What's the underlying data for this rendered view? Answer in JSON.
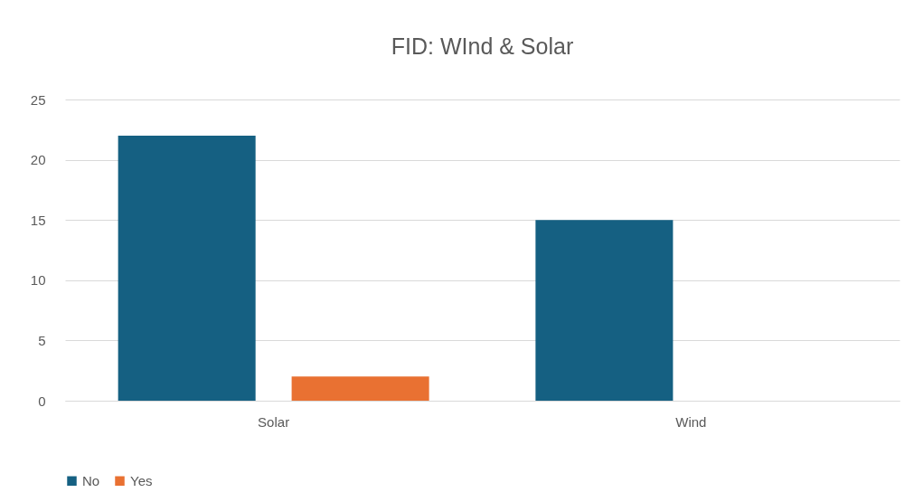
{
  "chart_data": {
    "type": "bar",
    "title": "FID: WInd & Solar",
    "categories": [
      "Solar",
      "Wind"
    ],
    "series": [
      {
        "name": "No",
        "color": "#156082",
        "values": [
          22,
          15
        ]
      },
      {
        "name": "Yes",
        "color": "#e97132",
        "values": [
          2,
          0
        ]
      }
    ],
    "ylim": [
      0,
      25
    ],
    "yticks": [
      0,
      5,
      10,
      15,
      20,
      25
    ],
    "grid": "y",
    "legend": "bottom"
  }
}
